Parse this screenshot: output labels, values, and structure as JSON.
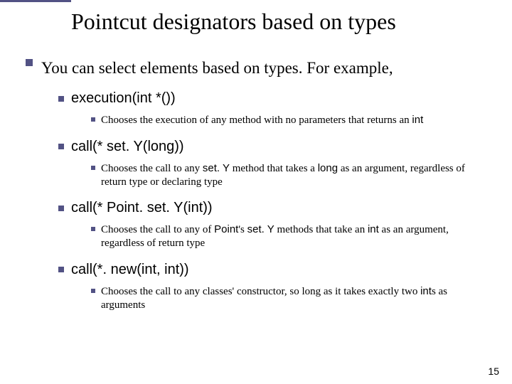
{
  "title": "Pointcut designators based on types",
  "colors": {
    "accent": "#525284",
    "background": "#ffffff",
    "text": "#000000"
  },
  "typography": {
    "title_fontsize": 32,
    "l1_fontsize": 23,
    "l2_fontsize": 20,
    "l3_fontsize": 15,
    "body_family": "Times New Roman",
    "code_family": "Verdana"
  },
  "intro": "You can select elements based on types. For example,",
  "items": [
    {
      "heading": "execution(int *())",
      "desc_pre": "Chooses the execution of any method with no parameters that returns an ",
      "desc_code": "int",
      "desc_post": ""
    },
    {
      "heading": "call(* set. Y(long))",
      "desc_pre": "Chooses the call to any ",
      "desc_code": "set. Y",
      "desc_mid": " method that takes a ",
      "desc_code2": "long",
      "desc_post": " as an argument, regardless of return type or declaring type"
    },
    {
      "heading": "call(* Point. set. Y(int))",
      "desc_pre": "Chooses the call to any of ",
      "desc_code": "Point",
      "desc_mid": "'s ",
      "desc_code2": "set. Y",
      "desc_mid2": " methods that take an ",
      "desc_code3": "int",
      "desc_post": " as an argument, regardless of return type"
    },
    {
      "heading": "call(*. new(int, int))",
      "desc_pre": "Chooses the call to any classes' constructor, so long as it takes exactly two ",
      "desc_code": "int",
      "desc_post": "s as arguments"
    }
  ],
  "page_number": "15"
}
